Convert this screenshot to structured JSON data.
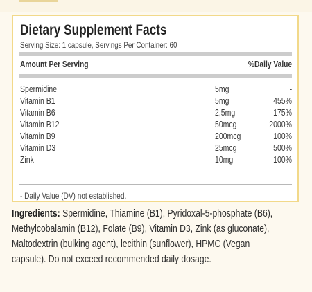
{
  "panel": {
    "title": "Dietary Supplement Facts",
    "serving_info": "Serving Size: 1 capsule, Servings Per Container: 60",
    "column_headers": {
      "amount": "Amount Per Serving",
      "daily_value": "%Daily Value"
    },
    "nutrients": [
      {
        "name": "Spermidine",
        "amount": "5mg",
        "dv": "-"
      },
      {
        "name": "Vitamin B1",
        "amount": "5mg",
        "dv": "455%"
      },
      {
        "name": "Vitamin B6",
        "amount": "2,5mg",
        "dv": "175%"
      },
      {
        "name": "Vitamin B12",
        "amount": "50mcg",
        "dv": "2000%"
      },
      {
        "name": "Vitamin B9",
        "amount": "200mcg",
        "dv": "100%"
      },
      {
        "name": "Vitamin D3",
        "amount": "25mcg",
        "dv": "500%"
      },
      {
        "name": "Zink",
        "amount": "10mg",
        "dv": "100%"
      }
    ],
    "footnote": "- Daily Value (DV) not established."
  },
  "ingredients": {
    "label": "Ingredients:",
    "lines": [
      "Spermidine, Thiamine (B1), Pyridoxal-5-phosphate (B6),",
      "Methylcobalamin (B12), Folate (B9), Vitamin D3, Zink (as gluconate),",
      "Maltodextrin (bulking agent), lecithin (sunflower), HPMC (Vegan",
      "capsule). Do not exceed recommended daily dosage."
    ]
  },
  "colors": {
    "page_background": "#fdf9ef",
    "panel_border": "#f2d98a",
    "panel_background": "#ffffff",
    "rule": "#cccccc",
    "text": "#333333"
  }
}
